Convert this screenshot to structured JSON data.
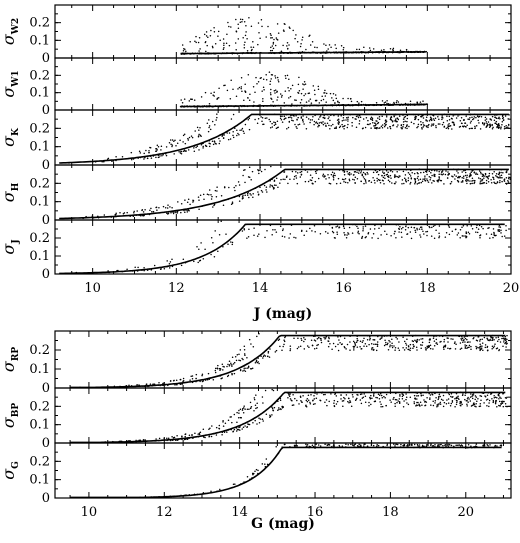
{
  "chart_data": [
    {
      "type": "scatter",
      "group": "J-band panels",
      "xlabel": "J (mag)",
      "xlim": [
        9.1,
        20.0
      ],
      "x_ticks": [
        "10",
        "12",
        "14",
        "16",
        "18",
        "20"
      ],
      "x_tick_values": [
        10,
        12,
        14,
        16,
        18,
        20
      ],
      "panels": [
        {
          "ylabel_symbol": "σ",
          "ylabel_sub": "W2",
          "ylim": [
            0,
            0.3
          ],
          "y_ticks": [
            "0",
            "0.1",
            "0.2"
          ],
          "y_tick_values": [
            0,
            0.1,
            0.2
          ],
          "x_range": [
            12.1,
            18.0
          ],
          "x_peak": 13.8,
          "floor": 0.025,
          "floor_growth": 0.01,
          "scatter_scale": 0.06,
          "scatter_max": 0.27,
          "sigma_x": 1.5,
          "amplitude": 0.012,
          "growth": 0.34,
          "saturate": 0.3,
          "points": 520
        },
        {
          "ylabel_symbol": "σ",
          "ylabel_sub": "W1",
          "ylim": [
            0,
            0.3
          ],
          "y_ticks": [
            "0",
            "0.1",
            "0.2"
          ],
          "y_tick_values": [
            0,
            0.1,
            0.2
          ],
          "x_range": [
            12.1,
            18.0
          ],
          "x_peak": 14.2,
          "floor": 0.02,
          "floor_growth": 0.012,
          "scatter_scale": 0.06,
          "scatter_max": 0.25,
          "sigma_x": 1.5,
          "amplitude": 0.011,
          "growth": 0.34,
          "saturate": 0.3,
          "points": 520
        },
        {
          "ylabel_symbol": "σ",
          "ylabel_sub": "K",
          "ylim": [
            0,
            0.3
          ],
          "y_ticks": [
            "0",
            "0.1",
            "0.2"
          ],
          "y_tick_values": [
            0,
            0.1,
            0.2
          ],
          "x_range": [
            9.2,
            20.0
          ],
          "amplitude": 0.012,
          "growth": 0.7,
          "saturate": 0.3,
          "points": 1100
        },
        {
          "ylabel_symbol": "σ",
          "ylabel_sub": "H",
          "ylim": [
            0,
            0.3
          ],
          "y_ticks": [
            "0",
            "0.1",
            "0.2"
          ],
          "y_tick_values": [
            0,
            0.1,
            0.2
          ],
          "x_range": [
            9.2,
            20.0
          ],
          "amplitude": 0.009,
          "growth": 0.65,
          "saturate": 0.3,
          "points": 1000
        },
        {
          "ylabel_symbol": "σ",
          "ylabel_sub": "J",
          "ylim": [
            0,
            0.3
          ],
          "y_ticks": [
            "0",
            "0.1",
            "0.2"
          ],
          "y_tick_values": [
            0,
            0.1,
            0.2
          ],
          "x_range": [
            9.2,
            19.9
          ],
          "amplitude": 0.0035,
          "growth": 1.0,
          "saturate": 0.3,
          "points": 480
        }
      ]
    },
    {
      "type": "scatter",
      "group": "G-band panels",
      "xlabel": "G (mag)",
      "xlim": [
        9.1,
        21.2
      ],
      "x_ticks": [
        "10",
        "12",
        "14",
        "16",
        "18",
        "20"
      ],
      "x_tick_values": [
        10,
        12,
        14,
        16,
        18,
        20
      ],
      "panels": [
        {
          "ylabel_symbol": "σ",
          "ylabel_sub": "RP",
          "ylim": [
            0,
            0.3
          ],
          "y_ticks": [
            "0",
            "0.1",
            "0.2"
          ],
          "y_tick_values": [
            0,
            0.1,
            0.2
          ],
          "x_range": [
            9.5,
            21.1
          ],
          "amplitude": 0.002,
          "growth": 0.9,
          "saturate": 0.3,
          "points": 900
        },
        {
          "ylabel_symbol": "σ",
          "ylabel_sub": "BP",
          "ylim": [
            0,
            0.3
          ],
          "y_ticks": [
            "0",
            "0.1",
            "0.2"
          ],
          "y_tick_values": [
            0,
            0.1,
            0.2
          ],
          "x_range": [
            9.5,
            21.1
          ],
          "amplitude": 0.0018,
          "growth": 0.9,
          "saturate": 0.3,
          "points": 900
        },
        {
          "ylabel_symbol": "σ",
          "ylabel_sub": "G",
          "ylim": [
            0,
            0.3
          ],
          "y_ticks": [
            "0",
            "0.1",
            "0.2"
          ],
          "y_tick_values": [
            0,
            0.1,
            0.2
          ],
          "x_range": [
            9.5,
            21.0
          ],
          "amplitude": 0.00035,
          "growth": 1.2,
          "saturate": 0.3,
          "points": 420
        }
      ]
    }
  ]
}
